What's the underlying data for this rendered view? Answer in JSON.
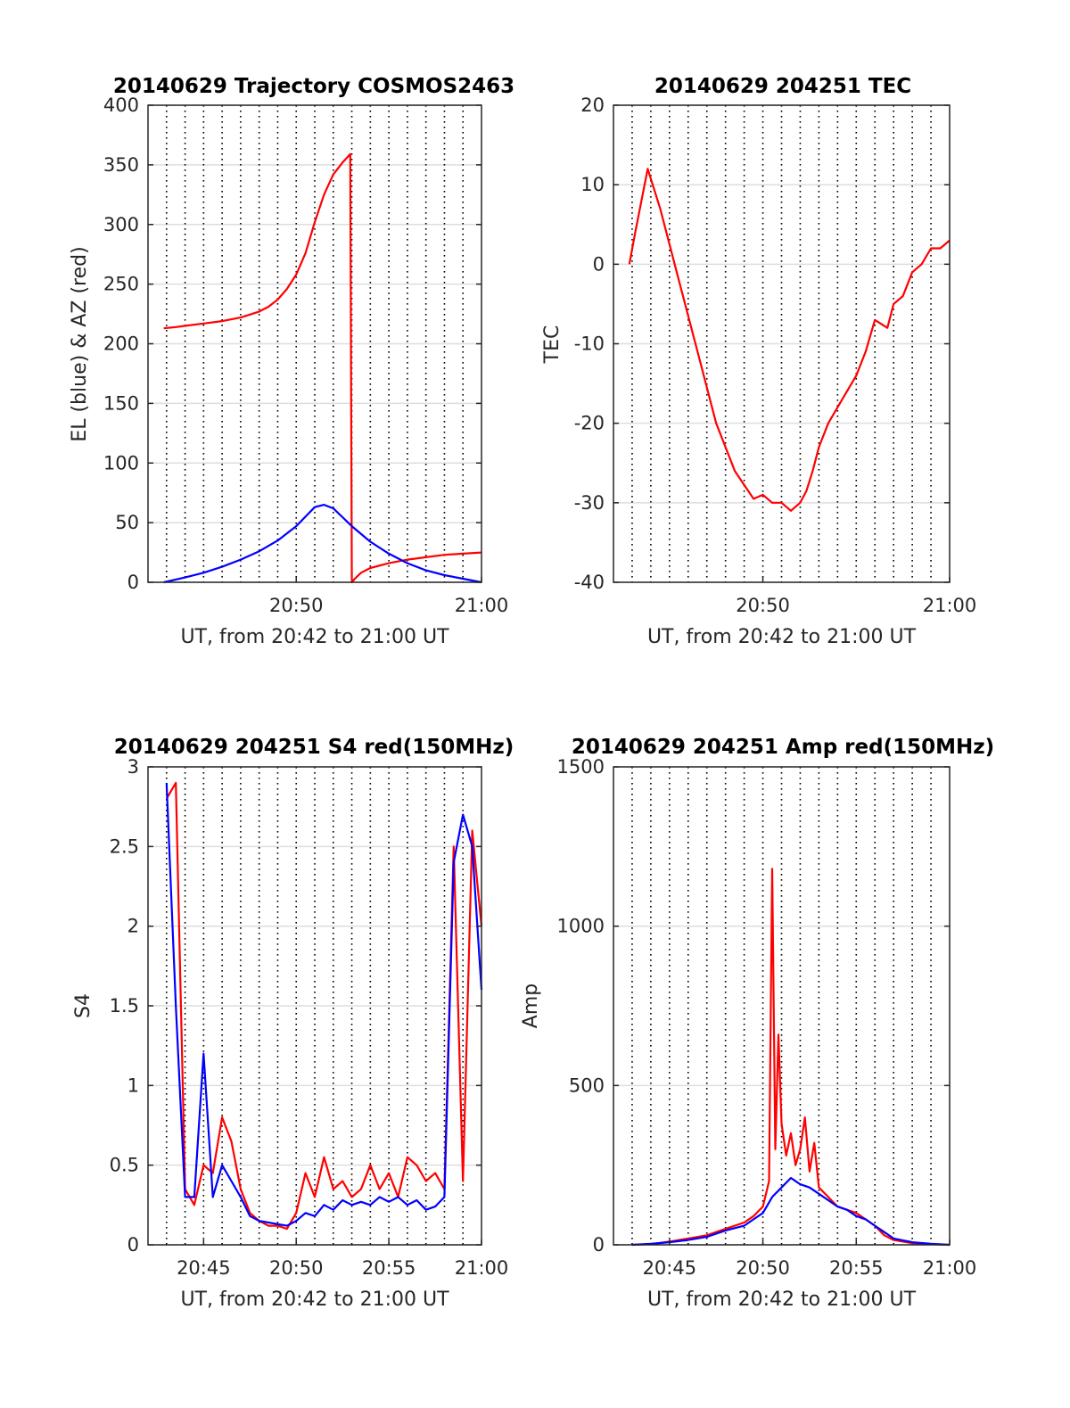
{
  "colors": {
    "red": "#ff0000",
    "blue": "#0000ff",
    "grid_solid": "#dedede",
    "grid_dotted": "#000000",
    "axis": "#262626",
    "background": "#ffffff"
  },
  "chart_data": [
    {
      "type": "line",
      "title": "20140629 Trajectory COSMOS2463",
      "xlabel": "UT, from 20:42 to 21:00 UT",
      "ylabel": "EL (blue) & AZ (red)",
      "x_unit": "UT time (HH:MM)",
      "xlim": [
        "20:42",
        "21:00"
      ],
      "ylim": [
        0,
        400
      ],
      "yticks": [
        0,
        50,
        100,
        150,
        200,
        250,
        300,
        350,
        400
      ],
      "ytick_labels": [
        "0",
        "50",
        "100",
        "150",
        "200",
        "250",
        "300",
        "350",
        "400"
      ],
      "xticks": [
        "20:50",
        "21:00"
      ],
      "xtick_labels": [
        "20:50",
        "21:00"
      ],
      "grid": "horizontal solid at y ticks; vertical dotted every 1 minute",
      "series": [
        {
          "color": "#ff0000",
          "x": [
            "20:42:51",
            "20:43:30",
            "20:44:00",
            "20:45:00",
            "20:46:00",
            "20:47:00",
            "20:48:00",
            "20:48:30",
            "20:49:00",
            "20:49:30",
            "20:50:00",
            "20:50:30",
            "20:51:00",
            "20:51:30",
            "20:52:00",
            "20:52:30",
            "20:52:55",
            "20:53:00",
            "20:53:10",
            "20:53:30",
            "20:54:00",
            "20:55:00",
            "20:56:00",
            "20:57:00",
            "20:58:00",
            "20:59:00",
            "21:00:00"
          ],
          "y": [
            213,
            214,
            215,
            217,
            219,
            222,
            227,
            231,
            237,
            246,
            258,
            276,
            302,
            325,
            342,
            352,
            359,
            0,
            3,
            8,
            12,
            16,
            19,
            21,
            23,
            24,
            25
          ]
        },
        {
          "color": "#0000ff",
          "x": [
            "20:42:51",
            "20:44:00",
            "20:45:00",
            "20:46:00",
            "20:47:00",
            "20:48:00",
            "20:49:00",
            "20:50:00",
            "20:50:30",
            "20:51:00",
            "20:51:30",
            "20:52:00",
            "20:53:00",
            "20:54:00",
            "20:55:00",
            "20:56:00",
            "20:57:00",
            "20:58:00",
            "20:59:00",
            "21:00:00"
          ],
          "y": [
            0,
            4,
            8,
            13,
            19,
            26,
            35,
            47,
            55,
            63,
            65,
            62,
            47,
            34,
            24,
            16,
            10,
            6,
            3,
            0
          ]
        }
      ]
    },
    {
      "type": "line",
      "title": "20140629 204251 TEC",
      "xlabel": "UT, from 20:42 to 21:00 UT",
      "ylabel": "TEC",
      "x_unit": "UT time (HH:MM)",
      "xlim": [
        "20:42",
        "21:00"
      ],
      "ylim": [
        -40,
        20
      ],
      "yticks": [
        -40,
        -30,
        -20,
        -10,
        0,
        10,
        20
      ],
      "ytick_labels": [
        "-40",
        "-30",
        "-20",
        "-10",
        "0",
        "10",
        "20"
      ],
      "xticks": [
        "20:50",
        "21:00"
      ],
      "xtick_labels": [
        "20:50",
        "21:00"
      ],
      "grid": "horizontal solid at y ticks; vertical dotted every 1 minute",
      "series": [
        {
          "color": "#ff0000",
          "x": [
            "20:42:51",
            "20:43:10",
            "20:43:30",
            "20:43:50",
            "20:44:30",
            "20:45:30",
            "20:46:30",
            "20:47:30",
            "20:48:30",
            "20:49:30",
            "20:50:00",
            "20:50:30",
            "20:51:00",
            "20:51:30",
            "20:52:00",
            "20:52:20",
            "20:52:40",
            "20:53:00",
            "20:53:30",
            "20:54:00",
            "20:55:00",
            "20:55:30",
            "20:56:00",
            "20:56:40",
            "20:57:00",
            "20:57:30",
            "20:58:00",
            "20:58:30",
            "20:59:00",
            "20:59:30",
            "21:00:00"
          ],
          "y": [
            0,
            4,
            8,
            12,
            7,
            -2,
            -11,
            -20,
            -26,
            -29.5,
            -29,
            -30,
            -30,
            -31,
            -30,
            -28.5,
            -26,
            -23,
            -20,
            -18,
            -14,
            -11,
            -7,
            -8,
            -5,
            -4,
            -1,
            0,
            2,
            2,
            3
          ]
        }
      ]
    },
    {
      "type": "line",
      "title": "20140629 204251 S4 red(150MHz)",
      "xlabel": "UT, from 20:42 to 21:00 UT",
      "ylabel": "S4",
      "x_unit": "UT time (HH:MM)",
      "xlim": [
        "20:42",
        "21:00"
      ],
      "ylim": [
        0,
        3
      ],
      "yticks": [
        0,
        0.5,
        1,
        1.5,
        2,
        2.5,
        3
      ],
      "ytick_labels": [
        "0",
        "0.5",
        "1",
        "1.5",
        "2",
        "2.5",
        "3"
      ],
      "xticks": [
        "20:45",
        "20:50",
        "20:55",
        "21:00"
      ],
      "xtick_labels": [
        "20:45",
        "20:50",
        "20:55",
        "21:00"
      ],
      "grid": "horizontal solid at y ticks; vertical dotted every 1 minute",
      "series": [
        {
          "color": "#ff0000",
          "x": [
            "20:43:00",
            "20:43:30",
            "20:44:00",
            "20:44:30",
            "20:45:00",
            "20:45:30",
            "20:46:00",
            "20:46:30",
            "20:47:00",
            "20:47:30",
            "20:48:00",
            "20:48:30",
            "20:49:00",
            "20:49:30",
            "20:50:00",
            "20:50:30",
            "20:51:00",
            "20:51:30",
            "20:52:00",
            "20:52:30",
            "20:53:00",
            "20:53:30",
            "20:54:00",
            "20:54:30",
            "20:55:00",
            "20:55:30",
            "20:56:00",
            "20:56:30",
            "20:57:00",
            "20:57:30",
            "20:58:00",
            "20:58:30",
            "20:59:00",
            "20:59:30",
            "21:00:00"
          ],
          "y": [
            2.8,
            2.9,
            0.35,
            0.25,
            0.5,
            0.45,
            0.8,
            0.65,
            0.35,
            0.2,
            0.15,
            0.12,
            0.12,
            0.1,
            0.2,
            0.45,
            0.3,
            0.55,
            0.35,
            0.4,
            0.3,
            0.35,
            0.5,
            0.35,
            0.45,
            0.3,
            0.55,
            0.5,
            0.4,
            0.45,
            0.35,
            2.5,
            0.4,
            2.6,
            2.0
          ]
        },
        {
          "color": "#0000ff",
          "x": [
            "20:43:00",
            "20:43:30",
            "20:44:00",
            "20:44:30",
            "20:45:00",
            "20:45:30",
            "20:46:00",
            "20:46:30",
            "20:47:00",
            "20:47:30",
            "20:48:00",
            "20:48:30",
            "20:49:00",
            "20:49:30",
            "20:50:00",
            "20:50:30",
            "20:51:00",
            "20:51:30",
            "20:52:00",
            "20:52:30",
            "20:53:00",
            "20:53:30",
            "20:54:00",
            "20:54:30",
            "20:55:00",
            "20:55:30",
            "20:56:00",
            "20:56:30",
            "20:57:00",
            "20:57:30",
            "20:58:00",
            "20:58:30",
            "20:59:00",
            "20:59:30",
            "21:00:00"
          ],
          "y": [
            2.9,
            1.5,
            0.3,
            0.3,
            1.2,
            0.3,
            0.5,
            0.4,
            0.3,
            0.18,
            0.15,
            0.14,
            0.13,
            0.12,
            0.15,
            0.2,
            0.18,
            0.25,
            0.22,
            0.28,
            0.25,
            0.27,
            0.25,
            0.3,
            0.27,
            0.3,
            0.25,
            0.28,
            0.22,
            0.24,
            0.3,
            2.4,
            2.7,
            2.5,
            1.6
          ]
        }
      ]
    },
    {
      "type": "line",
      "title": "20140629 204251 Amp red(150MHz)",
      "xlabel": "UT, from 20:42 to 21:00 UT",
      "ylabel": "Amp",
      "x_unit": "UT time (HH:MM)",
      "xlim": [
        "20:42",
        "21:00"
      ],
      "ylim": [
        0,
        1500
      ],
      "yticks": [
        0,
        500,
        1000,
        1500
      ],
      "ytick_labels": [
        "0",
        "500",
        "1000",
        "1500"
      ],
      "xticks": [
        "20:45",
        "20:50",
        "20:55",
        "21:00"
      ],
      "xtick_labels": [
        "20:45",
        "20:50",
        "20:55",
        "21:00"
      ],
      "grid": "horizontal solid at y ticks; vertical dotted every 1 minute",
      "series": [
        {
          "color": "#ff0000",
          "x": [
            "20:43:00",
            "20:44:00",
            "20:45:00",
            "20:46:00",
            "20:47:00",
            "20:48:00",
            "20:49:00",
            "20:49:30",
            "20:50:00",
            "20:50:20",
            "20:50:30",
            "20:50:40",
            "20:50:50",
            "20:51:00",
            "20:51:15",
            "20:51:30",
            "20:51:45",
            "20:52:00",
            "20:52:15",
            "20:52:30",
            "20:52:45",
            "20:53:00",
            "20:53:30",
            "20:54:00",
            "20:54:30",
            "20:55:00",
            "20:55:30",
            "20:56:00",
            "20:56:30",
            "20:57:00",
            "20:58:00",
            "20:59:00",
            "21:00:00"
          ],
          "y": [
            0,
            2,
            10,
            20,
            30,
            50,
            70,
            90,
            120,
            200,
            1180,
            300,
            660,
            380,
            280,
            350,
            250,
            300,
            400,
            230,
            320,
            180,
            150,
            120,
            110,
            100,
            80,
            60,
            30,
            15,
            5,
            2,
            0
          ]
        },
        {
          "color": "#0000ff",
          "x": [
            "20:43:00",
            "20:44:00",
            "20:45:00",
            "20:46:00",
            "20:47:00",
            "20:48:00",
            "20:49:00",
            "20:49:30",
            "20:50:00",
            "20:50:30",
            "20:51:00",
            "20:51:30",
            "20:52:00",
            "20:52:30",
            "20:53:00",
            "20:53:30",
            "20:54:00",
            "20:54:30",
            "20:55:00",
            "20:55:30",
            "20:56:00",
            "20:56:30",
            "20:57:00",
            "20:58:00",
            "20:59:00",
            "21:00:00"
          ],
          "y": [
            0,
            3,
            8,
            15,
            25,
            45,
            60,
            80,
            100,
            150,
            180,
            210,
            190,
            180,
            160,
            140,
            120,
            110,
            90,
            80,
            60,
            40,
            20,
            8,
            3,
            0
          ]
        }
      ]
    }
  ]
}
